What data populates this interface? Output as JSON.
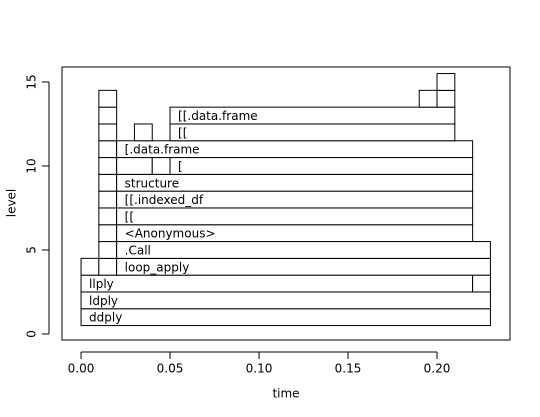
{
  "chart_data": {
    "type": "flame",
    "x_label": "time",
    "y_label": "level",
    "xlim": [
      -0.0107,
      0.241
    ],
    "ylim": [
      -0.36,
      15.89
    ],
    "xticks": [
      {
        "value": 0,
        "label": "0.00"
      },
      0.05,
      {
        "value": 0.1,
        "label": "0.10"
      },
      0.15,
      {
        "value": 0.2,
        "label": "0.20"
      }
    ],
    "yticks": [
      0,
      5,
      10,
      15
    ],
    "color": "#ffffff",
    "frames": [
      {
        "start": 0,
        "end": 0.23,
        "level": 1,
        "label": "ddply"
      },
      {
        "start": 0,
        "end": 0.23,
        "level": 2,
        "label": "ldply"
      },
      {
        "start": 0,
        "end": 0.22,
        "level": 3,
        "label": "llply"
      },
      {
        "start": 0.22,
        "end": 0.23,
        "level": 3
      },
      {
        "start": 0,
        "end": 0.01,
        "level": 4
      },
      {
        "start": 0.01,
        "end": 0.02,
        "level": 4
      },
      {
        "start": 0.02,
        "end": 0.23,
        "level": 4,
        "label": "loop_apply"
      },
      {
        "start": 0.01,
        "end": 0.02,
        "level": 5
      },
      {
        "start": 0.02,
        "end": 0.23,
        "level": 5,
        "label": ".Call"
      },
      {
        "start": 0.01,
        "end": 0.02,
        "level": 6
      },
      {
        "start": 0.02,
        "end": 0.22,
        "level": 6,
        "label": "<Anonymous>"
      },
      {
        "start": 0.01,
        "end": 0.02,
        "level": 7
      },
      {
        "start": 0.02,
        "end": 0.22,
        "level": 7,
        "label": "[["
      },
      {
        "start": 0.01,
        "end": 0.02,
        "level": 8
      },
      {
        "start": 0.02,
        "end": 0.22,
        "level": 8,
        "label": "[[.indexed_df"
      },
      {
        "start": 0.01,
        "end": 0.02,
        "level": 9
      },
      {
        "start": 0.02,
        "end": 0.22,
        "level": 9,
        "label": "structure"
      },
      {
        "start": 0.01,
        "end": 0.02,
        "level": 10
      },
      {
        "start": 0.02,
        "end": 0.04,
        "level": 10
      },
      {
        "start": 0.04,
        "end": 0.05,
        "level": 10
      },
      {
        "start": 0.05,
        "end": 0.22,
        "level": 10,
        "label": "["
      },
      {
        "start": 0.01,
        "end": 0.02,
        "level": 11
      },
      {
        "start": 0.02,
        "end": 0.22,
        "level": 11,
        "label": "[.data.frame"
      },
      {
        "start": 0.01,
        "end": 0.02,
        "level": 12
      },
      {
        "start": 0.03,
        "end": 0.04,
        "level": 12
      },
      {
        "start": 0.05,
        "end": 0.21,
        "level": 12,
        "label": "[["
      },
      {
        "start": 0.01,
        "end": 0.02,
        "level": 13
      },
      {
        "start": 0.05,
        "end": 0.21,
        "level": 13,
        "label": "[[.data.frame"
      },
      {
        "start": 0.01,
        "end": 0.02,
        "level": 14
      },
      {
        "start": 0.19,
        "end": 0.2,
        "level": 14
      },
      {
        "start": 0.2,
        "end": 0.21,
        "level": 14
      },
      {
        "start": 0.2,
        "end": 0.21,
        "level": 15
      }
    ]
  }
}
